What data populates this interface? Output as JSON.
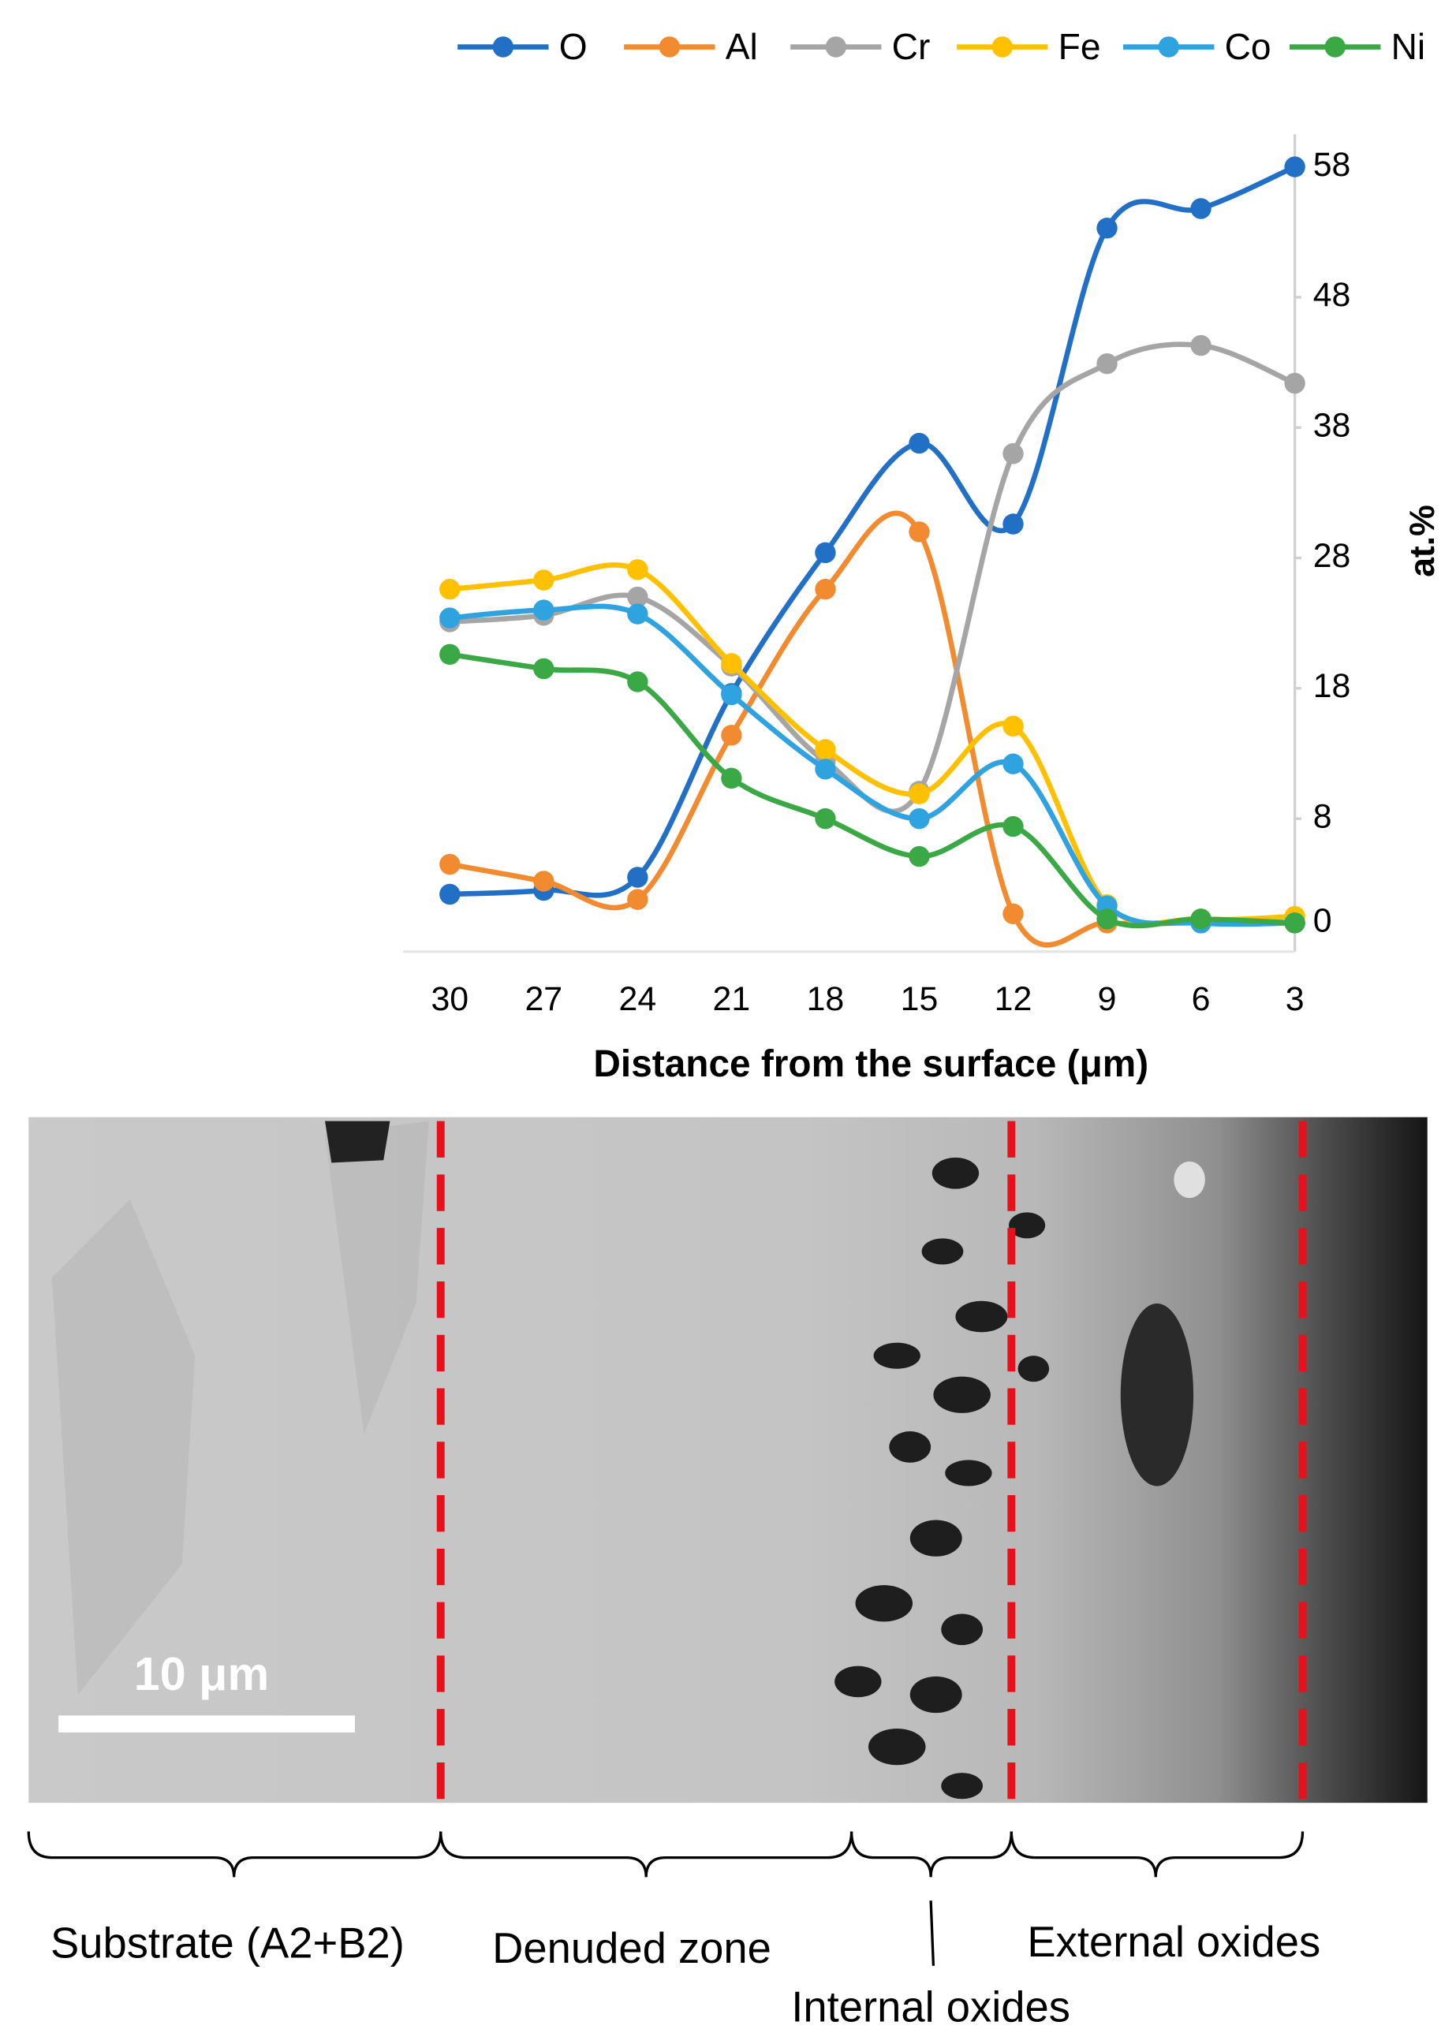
{
  "chart_data": {
    "type": "line",
    "categories": [
      "30",
      "27",
      "24",
      "21",
      "18",
      "15",
      "12",
      "9",
      "6",
      "3"
    ],
    "x_label": "Distance from the surface (μm)",
    "y_label": "at.%",
    "ylim": [
      -2.2,
      60.5
    ],
    "yticks": [
      0,
      8,
      18,
      28,
      38,
      48,
      58
    ],
    "legend": "top",
    "series": [
      {
        "name": "O",
        "color": "#2270c6",
        "values": [
          2.2,
          2.5,
          3.5,
          17.6,
          28.4,
          36.8,
          30.6,
          53.3,
          54.8,
          58
        ]
      },
      {
        "name": "Al",
        "color": "#f28a30",
        "values": [
          4.5,
          3.2,
          1.8,
          14.4,
          25.6,
          30,
          0.7,
          0,
          0,
          0
        ]
      },
      {
        "name": "Cr",
        "color": "#a5a5a5",
        "values": [
          23.1,
          23.6,
          25,
          19.7,
          12.4,
          10.1,
          36,
          42.9,
          44.3,
          41.4
        ]
      },
      {
        "name": "Fe",
        "color": "#ffc000",
        "values": [
          25.6,
          26.3,
          27.1,
          19.9,
          13.3,
          9.9,
          15.1,
          1.4,
          0.3,
          0.5
        ]
      },
      {
        "name": "Co",
        "color": "#2ea3e0",
        "values": [
          23.4,
          24,
          23.7,
          17.5,
          11.8,
          8,
          12.2,
          1.3,
          0,
          0
        ]
      },
      {
        "name": "Ni",
        "color": "#3aa845",
        "values": [
          20.6,
          19.5,
          18.5,
          11.1,
          8,
          5.1,
          7.4,
          0.3,
          0.3,
          0
        ]
      }
    ]
  },
  "image": {
    "scale_bar": "10 μm",
    "zones": [
      "Substrate (A2+B2)",
      "Denuded zone",
      "Internal oxides",
      "External oxides"
    ]
  }
}
